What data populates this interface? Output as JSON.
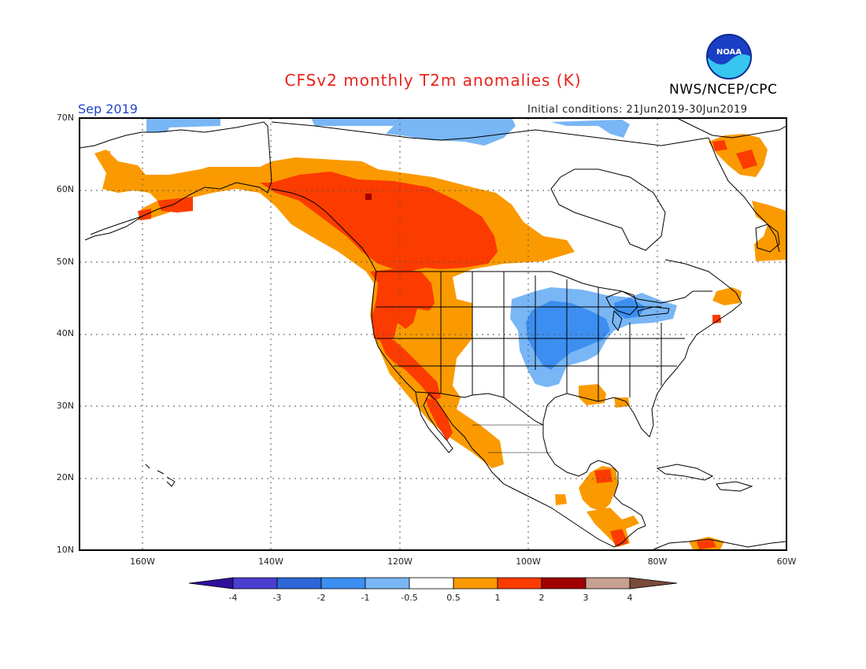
{
  "header": {
    "title": "CFSv2 monthly T2m anomalies (K)",
    "agency": "NWS/NCEP/CPC",
    "month": "Sep 2019",
    "initial_conditions": "Initial conditions: 21Jun2019-30Jun2019",
    "logo_text": "NOAA"
  },
  "map": {
    "lat_labels": [
      "70N",
      "60N",
      "50N",
      "40N",
      "30N",
      "20N",
      "10N"
    ],
    "lon_labels": [
      "160W",
      "140W",
      "120W",
      "100W",
      "80W",
      "60W"
    ],
    "gridlines": "dotted",
    "lat_range": [
      10,
      70
    ],
    "lon_range": [
      -170,
      -60
    ]
  },
  "colorbar": {
    "labels": [
      "-4",
      "-3",
      "-2",
      "-1",
      "-0.5",
      "0.5",
      "1",
      "2",
      "3",
      "4"
    ],
    "colors": [
      "#2f0f9c",
      "#4a3fcf",
      "#2d66d6",
      "#3c8ff0",
      "#79b6f5",
      "#ffffff",
      "#fa9a00",
      "#fc3b00",
      "#a00000",
      "#c8a090",
      "#7a4a3a"
    ]
  },
  "anomaly_colors": {
    "weak_cold": "#79b6f5",
    "moderate_cold": "#3c8ff0",
    "weak_warm": "#fa9a00",
    "moderate_warm": "#fc3b00",
    "strong_warm": "#a00000"
  }
}
